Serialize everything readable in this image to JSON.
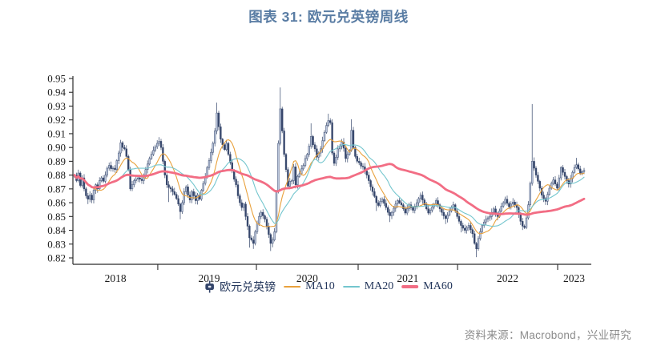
{
  "title": "图表 31: 欧元兑英镑周线",
  "source_note": "资料来源：Macrobond，兴业研究",
  "legend": {
    "candle_label": "欧元兑英镑",
    "ma10_label": "MA10",
    "ma20_label": "MA20",
    "ma60_label": "MA60"
  },
  "colors": {
    "title_blue": "#5A7DA4",
    "candle_navy": "#35466B",
    "candle_up_fill": "#B9C5DB",
    "ma10_orange": "#E9A13C",
    "ma20_teal": "#74C6CE",
    "ma60_pink": "#F26D84",
    "axis_text": "#1C1C1C",
    "source_gray": "#8B8B8B"
  },
  "chart_data": {
    "type": "candlestick",
    "title": "欧元兑英镑周线",
    "series_label": "欧元兑英镑",
    "frequency": "weekly",
    "legend_position": "bottom",
    "grid": false,
    "ylim": [
      0.8155,
      0.952
    ],
    "yticks": [
      0.82,
      0.83,
      0.84,
      0.85,
      0.86,
      0.87,
      0.88,
      0.89,
      0.9,
      0.91,
      0.92,
      0.93,
      0.94,
      0.95
    ],
    "x_year_labels": [
      "2018",
      "2019",
      "2020",
      "2021",
      "2022",
      "2023"
    ],
    "year_label_weeks": [
      21.3,
      70.0,
      121.0,
      173.3,
      225.2,
      259.8
    ],
    "year_boundary_weeks": [
      43.3,
      94.6,
      147.5,
      199.2,
      251.25
    ],
    "weeks": 266,
    "ma_periods": [
      10,
      20,
      60
    ],
    "open_first": 0.879,
    "weekly_closes": [
      0.88,
      0.876,
      0.8815,
      0.8725,
      0.878,
      0.87,
      0.865,
      0.8625,
      0.8655,
      0.862,
      0.869,
      0.873,
      0.87,
      0.876,
      0.878,
      0.8755,
      0.88,
      0.885,
      0.887,
      0.8845,
      0.885,
      0.884,
      0.8905,
      0.896,
      0.9035,
      0.9,
      0.899,
      0.8935,
      0.884,
      0.87,
      0.873,
      0.876,
      0.877,
      0.878,
      0.877,
      0.876,
      0.88,
      0.884,
      0.888,
      0.892,
      0.895,
      0.898,
      0.9005,
      0.903,
      0.9045,
      0.9,
      0.89,
      0.88,
      0.873,
      0.871,
      0.87,
      0.868,
      0.866,
      0.863,
      0.859,
      0.8535,
      0.86,
      0.868,
      0.8715,
      0.8655,
      0.862,
      0.868,
      0.865,
      0.8615,
      0.8655,
      0.8625,
      0.869,
      0.874,
      0.879,
      0.8855,
      0.8905,
      0.8965,
      0.903,
      0.912,
      0.925,
      0.915,
      0.906,
      0.902,
      0.8985,
      0.903,
      0.895,
      0.889,
      0.883,
      0.877,
      0.873,
      0.865,
      0.86,
      0.8565,
      0.859,
      0.85,
      0.843,
      0.8345,
      0.833,
      0.8305,
      0.839,
      0.845,
      0.85,
      0.853,
      0.8505,
      0.848,
      0.843,
      0.837,
      0.8305,
      0.833,
      0.839,
      0.868,
      0.903,
      0.928,
      0.912,
      0.895,
      0.884,
      0.872,
      0.8755,
      0.876,
      0.886,
      0.873,
      0.879,
      0.881,
      0.8845,
      0.887,
      0.892,
      0.895,
      0.901,
      0.908,
      0.902,
      0.899,
      0.893,
      0.896,
      0.899,
      0.905,
      0.911,
      0.916,
      0.9195,
      0.918,
      0.896,
      0.8885,
      0.893,
      0.899,
      0.901,
      0.904,
      0.8995,
      0.892,
      0.895,
      0.898,
      0.9125,
      0.9,
      0.8935,
      0.89,
      0.889,
      0.8865,
      0.886,
      0.883,
      0.88,
      0.876,
      0.8715,
      0.868,
      0.8645,
      0.86,
      0.858,
      0.861,
      0.8625,
      0.8595,
      0.8565,
      0.853,
      0.8505,
      0.853,
      0.856,
      0.859,
      0.8615,
      0.86,
      0.8585,
      0.8555,
      0.8525,
      0.8555,
      0.8585,
      0.8565,
      0.8545,
      0.8575,
      0.86,
      0.863,
      0.8655,
      0.862,
      0.8585,
      0.8555,
      0.8525,
      0.8545,
      0.857,
      0.859,
      0.8615,
      0.8585,
      0.8555,
      0.853,
      0.8505,
      0.8485,
      0.851,
      0.854,
      0.8565,
      0.8585,
      0.854,
      0.85,
      0.8465,
      0.8435,
      0.8415,
      0.84,
      0.842,
      0.8435,
      0.8405,
      0.8375,
      0.8305,
      0.8265,
      0.834,
      0.839,
      0.8435,
      0.846,
      0.848,
      0.849,
      0.85,
      0.853,
      0.8555,
      0.8525,
      0.85,
      0.854,
      0.8575,
      0.86,
      0.8625,
      0.8595,
      0.857,
      0.859,
      0.8605,
      0.8585,
      0.8565,
      0.8515,
      0.8465,
      0.843,
      0.842,
      0.849,
      0.8585,
      0.874,
      0.89,
      0.885,
      0.88,
      0.8755,
      0.8705,
      0.8655,
      0.863,
      0.861,
      0.866,
      0.8705,
      0.874,
      0.8765,
      0.8735,
      0.8705,
      0.878,
      0.8855,
      0.882,
      0.879,
      0.876,
      0.8735,
      0.8775,
      0.882,
      0.8855,
      0.8875,
      0.8845,
      0.8815,
      0.8825,
      0.8835
    ],
    "wick_overrides": {
      "7": {
        "l": 0.859
      },
      "24": {
        "h": 0.9055
      },
      "44": {
        "h": 0.9075
      },
      "49": {
        "l": 0.8605
      },
      "55": {
        "l": 0.848
      },
      "74": {
        "h": 0.9325
      },
      "91": {
        "l": 0.8275
      },
      "93": {
        "l": 0.8265
      },
      "102": {
        "l": 0.825
      },
      "107": {
        "h": 0.9435
      },
      "123": {
        "h": 0.9175
      },
      "132": {
        "h": 0.9245
      },
      "144": {
        "h": 0.9205
      },
      "157": {
        "l": 0.854
      },
      "164": {
        "l": 0.846
      },
      "193": {
        "l": 0.8445
      },
      "201": {
        "l": 0.8385
      },
      "209": {
        "l": 0.8205
      },
      "238": {
        "h": 0.9315
      },
      "261": {
        "h": 0.8925
      }
    }
  }
}
